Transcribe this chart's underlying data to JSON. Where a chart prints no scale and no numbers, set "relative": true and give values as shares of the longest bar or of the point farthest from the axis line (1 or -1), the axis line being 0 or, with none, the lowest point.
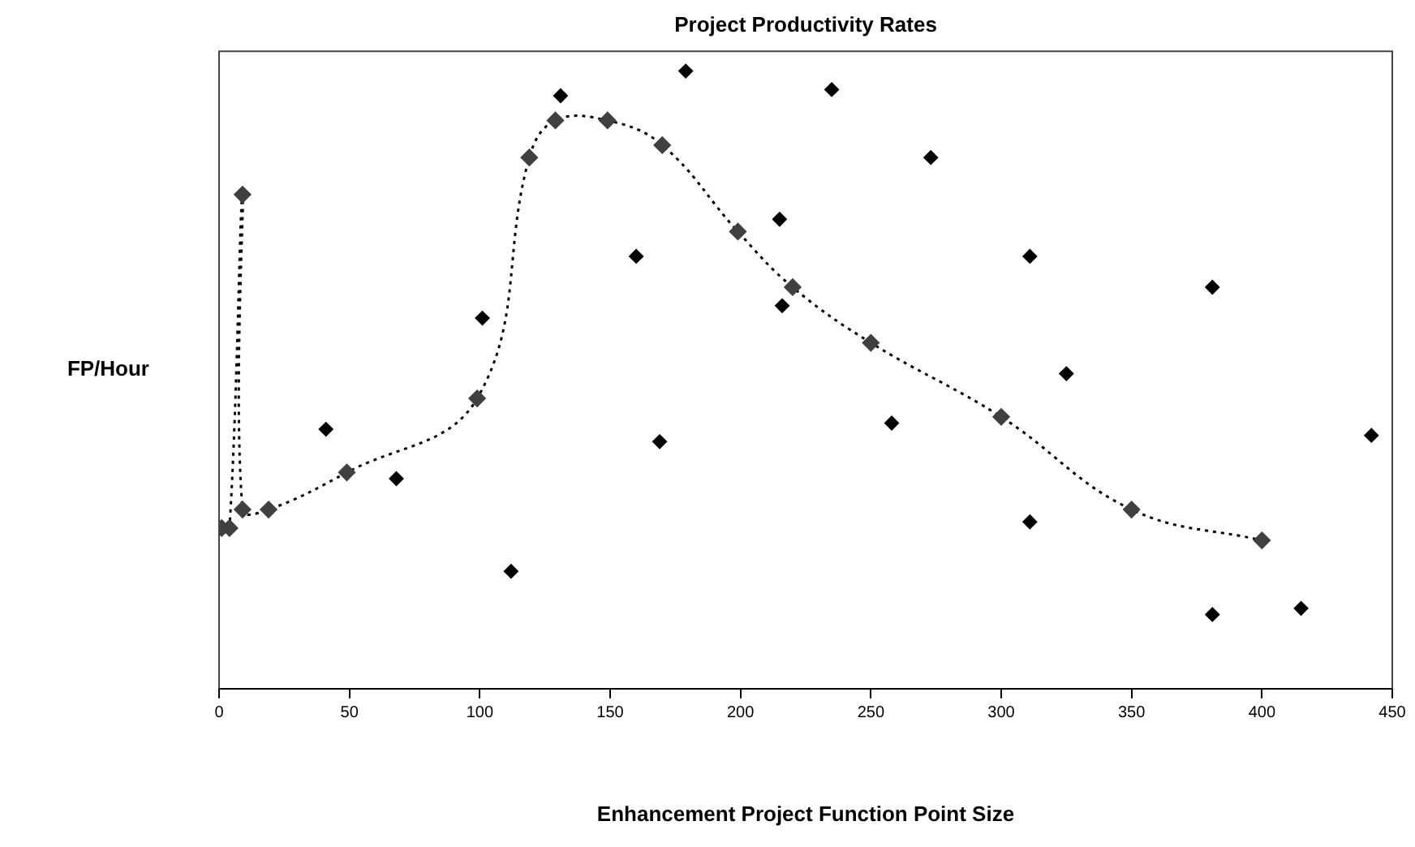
{
  "chart_data": {
    "type": "scatter",
    "title": "Project Productivity Rates",
    "xlabel": "Enhancement Project Function Point Size",
    "ylabel": "FP/Hour",
    "xlim": [
      0,
      450
    ],
    "xticks": [
      0,
      50,
      100,
      150,
      200,
      250,
      300,
      350,
      400,
      450
    ],
    "relative": true,
    "grid": false,
    "legend": false,
    "marker": "diamond",
    "series": [
      {
        "type": "scatter",
        "color": "#000000",
        "x": [
          41,
          68,
          101,
          112,
          131,
          160,
          169,
          179,
          215,
          216,
          235,
          258,
          273,
          311,
          311,
          325,
          381,
          381,
          415,
          442
        ],
        "values": [
          0.42,
          0.34,
          0.6,
          0.19,
          0.96,
          0.7,
          0.4,
          1,
          0.76,
          0.62,
          0.97,
          0.43,
          0.86,
          0.7,
          0.27,
          0.51,
          0.65,
          0.12,
          0.13,
          0.41
        ]
      },
      {
        "type": "line",
        "color": "#404040",
        "line_style": "dotted",
        "x": [
          1,
          4,
          9,
          9,
          19,
          49,
          99,
          119,
          129,
          149,
          170,
          199,
          220,
          250,
          300,
          350,
          400
        ],
        "values": [
          0.26,
          0.26,
          0.8,
          0.29,
          0.29,
          0.35,
          0.47,
          0.86,
          0.92,
          0.92,
          0.88,
          0.74,
          0.65,
          0.56,
          0.44,
          0.29,
          0.24
        ]
      }
    ]
  }
}
